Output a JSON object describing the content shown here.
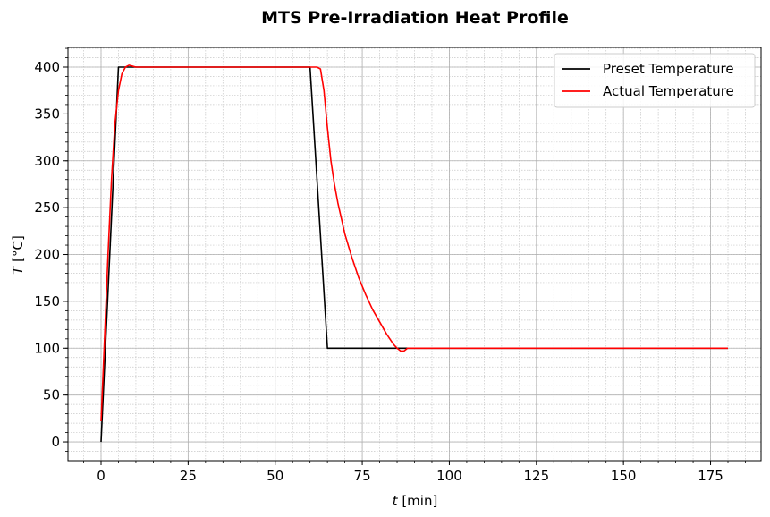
{
  "chart_data": {
    "type": "line",
    "title": "MTS Pre-Irradiation Heat Profile",
    "xlabel": {
      "var": "t",
      "unit": " [min]"
    },
    "ylabel": {
      "var": "T",
      "unit": " [°C]"
    },
    "xlim": [
      -9.5,
      189.5
    ],
    "ylim": [
      -20,
      421
    ],
    "xticks": [
      0,
      25,
      50,
      75,
      100,
      125,
      150,
      175
    ],
    "yticks": [
      0,
      50,
      100,
      150,
      200,
      250,
      300,
      350,
      400
    ],
    "grid": true,
    "legend_position": "top-right",
    "series": [
      {
        "name": "Preset Temperature",
        "color": "#000000",
        "x": [
          0,
          5,
          60,
          65,
          180
        ],
        "y": [
          0,
          400,
          400,
          100,
          100
        ]
      },
      {
        "name": "Actual Temperature",
        "color": "#ff0000",
        "x": [
          0,
          1,
          2,
          3,
          4,
          5,
          6,
          7,
          8,
          9,
          10,
          20,
          30,
          40,
          50,
          60,
          62,
          63,
          64,
          65,
          66,
          67,
          68,
          70,
          72,
          74,
          76,
          78,
          80,
          82,
          84,
          85,
          86,
          87,
          88,
          90,
          100,
          120,
          140,
          160,
          180
        ],
        "y": [
          22,
          110,
          200,
          280,
          340,
          375,
          393,
          400,
          402,
          401,
          400,
          400,
          400,
          400,
          400,
          400,
          400,
          398,
          375,
          335,
          300,
          275,
          255,
          222,
          197,
          175,
          157,
          141,
          128,
          115,
          104,
          100,
          97,
          97,
          100,
          100,
          100,
          100,
          100,
          100,
          100
        ]
      }
    ]
  }
}
